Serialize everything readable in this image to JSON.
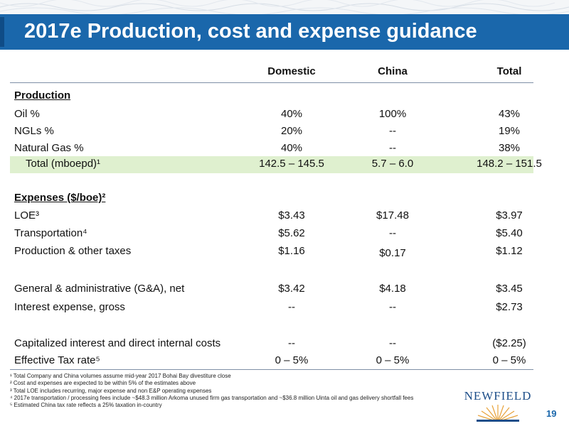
{
  "slide": {
    "title": "2017e Production, cost and expense guidance",
    "page_number": "19",
    "logo_text": "NEWFIELD",
    "brand_color": "#1a67ab"
  },
  "table": {
    "columns": [
      "Domestic",
      "China",
      "Total"
    ],
    "production_header": "Production",
    "production_rows": [
      {
        "label": "Oil %",
        "domestic": "40%",
        "china": "100%",
        "total": "43%"
      },
      {
        "label": "NGLs %",
        "domestic": "20%",
        "china": "--",
        "total": "19%"
      },
      {
        "label": "Natural Gas %",
        "domestic": "40%",
        "china": "--",
        "total": "38%"
      }
    ],
    "total_row": {
      "label": "Total (mboepd)¹",
      "domestic": "142.5 – 145.5",
      "china": "5.7 – 6.0",
      "total": "148.2 – 151.5"
    },
    "expenses_header": "Expenses ($/boe)²",
    "expense_rows": [
      {
        "label": "LOE³",
        "domestic": "$3.43",
        "china": "$17.48",
        "total": "$3.97"
      },
      {
        "label": "Transportation⁴",
        "domestic": "$5.62",
        "china": "--",
        "total": "$5.40"
      },
      {
        "label": "Production & other taxes",
        "domestic": "$1.16",
        "china": "$0.17",
        "total": "$1.12"
      },
      {
        "label": "General & administrative (G&A), net",
        "domestic": "$3.42",
        "china": "$4.18",
        "total": "$3.45"
      },
      {
        "label": "Interest expense, gross",
        "domestic": "--",
        "china": "--",
        "total": "$2.73"
      },
      {
        "label": "Capitalized interest and direct internal costs",
        "domestic": "--",
        "china": "--",
        "total": "($2.25)"
      },
      {
        "label": "Effective Tax rate⁵",
        "domestic": "0 – 5%",
        "china": "0 – 5%",
        "total": "0 – 5%"
      }
    ]
  },
  "footnotes": [
    "¹ Total Company and China volumes assume mid-year 2017 Bohai Bay divestiture close",
    "² Cost and expenses are expected to be within 5% of the estimates above",
    "³ Total LOE includes recurring, major expense and non E&P operating expenses",
    "⁴ 2017e transportation / processing fees include ~$48.3 million Arkoma unused firm gas transportation and ~$36.8 million Uinta oil and gas delivery shortfall fees",
    "⁵ Estimated China tax rate reflects a 25% taxation in-country"
  ]
}
